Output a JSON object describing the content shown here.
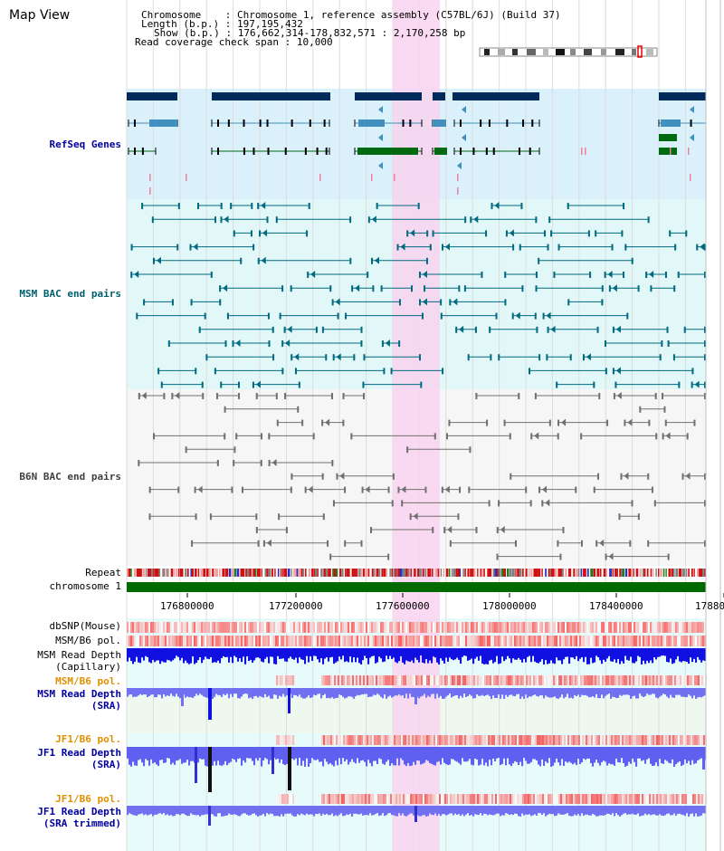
{
  "title": "Map View",
  "info": {
    "chromosome_label": "Chromosome",
    "chromosome_value": "Chromosome 1, reference assembly (C57BL/6J) (Build 37)",
    "length_label": "Length (b.p.)",
    "length_value": "197,195,432",
    "show_label": "Show (b.p.)",
    "show_value": "176,662,314-178,832,571 : 2,170,258 bp",
    "coverage_label": "Read coverage check span",
    "coverage_value": "10,000"
  },
  "tracks": {
    "refseq": "RefSeq Genes",
    "msm_bac": "MSM BAC end pairs",
    "b6n_bac": "B6N BAC end pairs",
    "repeat": "Repeat",
    "chromosome": "chromosome 1",
    "dbsnp": "dbSNP(Mouse)",
    "msm_b6_pol": "MSM/B6 pol.",
    "msm_depth_cap_1": "MSM Read Depth",
    "msm_depth_cap_2": "(Capillary)",
    "msm_b6_pol_2": "MSM/B6 pol.",
    "msm_depth_sra_1": "MSM Read Depth",
    "msm_depth_sra_2": "(SRA)",
    "jf1_pol": "JF1/B6 pol.",
    "jf1_depth_1": "JF1 Read Depth",
    "jf1_depth_2": "(SRA)",
    "jf1_pol_2": "JF1/B6 pol.",
    "jf1_trim_1": "JF1 Read Depth",
    "jf1_trim_2": "(SRA trimmed)"
  },
  "axis_ticks": [
    "176800000",
    "177200000",
    "177600000",
    "178000000",
    "178400000",
    "17880"
  ],
  "colors": {
    "refseq_bg": "#daf0fa",
    "msm_bg": "#e2f8f8",
    "b6n_bg": "#f6f6f6",
    "highlight": "#f8d4f0",
    "gene_dark": "#002a5a",
    "gene_mid": "#4090c0",
    "gene_green": "#006a10",
    "msm_feat": "#006a80",
    "b6n_feat": "#707070",
    "chromosome_bar": "#006a00",
    "depth_blue": "#0000e0"
  }
}
